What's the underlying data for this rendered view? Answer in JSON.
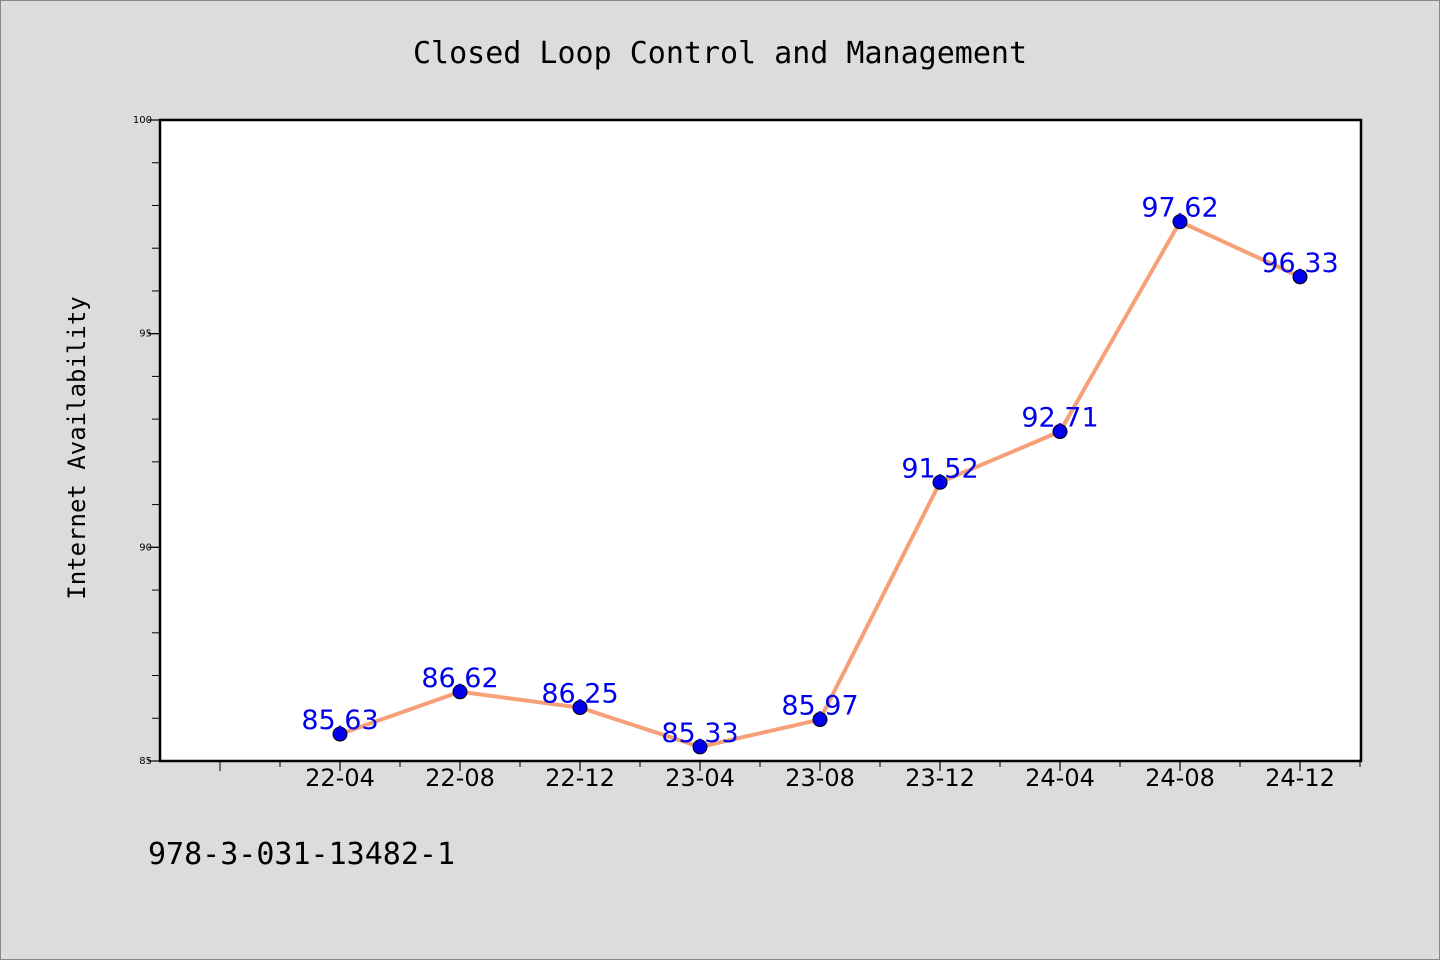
{
  "chart_data": {
    "type": "line",
    "title": "Closed Loop Control and Management",
    "xlabel": "",
    "ylabel": "Internet Availability",
    "x": [
      "22-04",
      "22-08",
      "22-12",
      "23-04",
      "23-08",
      "23-12",
      "24-04",
      "24-08",
      "24-12"
    ],
    "series": [
      {
        "values": [
          85.63,
          86.62,
          86.25,
          85.33,
          85.97,
          91.52,
          92.71,
          97.62,
          96.33
        ],
        "data_labels": [
          "85.63",
          "86.62",
          "86.25",
          "85.33",
          "85.97",
          "91.52",
          "92.71",
          "97.62",
          "96.33"
        ]
      }
    ],
    "ylim": [
      85,
      100
    ],
    "yticks": [
      85,
      90,
      95,
      100
    ],
    "ytick_labels": [
      "85",
      "90",
      "95",
      "100"
    ],
    "grid": false,
    "legend": "none",
    "colors": {
      "line": "#f5a078",
      "marker": "#0000ee",
      "data_label": "#0000ee",
      "plot_background": "#ffffff",
      "figure_background": "#dcdcdc"
    }
  },
  "footnote": "978-3-031-13482-1"
}
